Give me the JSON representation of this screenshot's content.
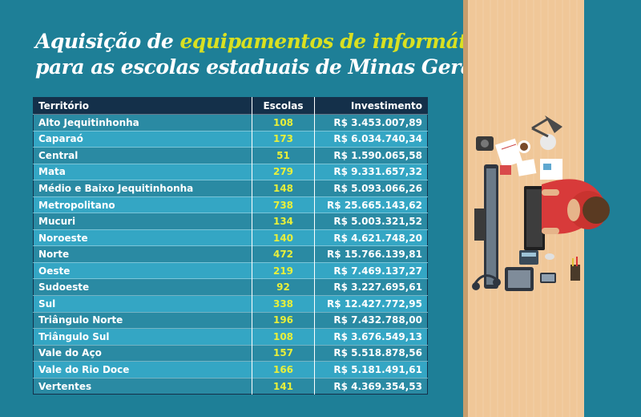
{
  "title": {
    "line1_part1": "Aquisição de ",
    "line1_highlight": "equipamentos de informática",
    "line2": "para as escolas estaduais de Minas Gerais"
  },
  "table": {
    "headers": [
      "Território",
      "Escolas",
      "Investimento"
    ],
    "rows": [
      [
        "Alto Jequitinhonha",
        "108",
        "R$ 3.453.007,89"
      ],
      [
        "Caparaó",
        "173",
        "R$ 6.034.740,34"
      ],
      [
        "Central",
        "51",
        "R$ 1.590.065,58"
      ],
      [
        "Mata",
        "279",
        "R$ 9.331.657,32"
      ],
      [
        "Médio e Baixo Jequitinhonha",
        "148",
        "R$ 5.093.066,26"
      ],
      [
        "Metropolitano",
        "738",
        "R$ 25.665.143,62"
      ],
      [
        "Mucuri",
        "134",
        "R$ 5.003.321,52"
      ],
      [
        "Noroeste",
        "140",
        "R$ 4.621.748,20"
      ],
      [
        "Norte",
        "472",
        "R$ 15.766.139,81"
      ],
      [
        "Oeste",
        "219",
        "R$ 7.469.137,27"
      ],
      [
        "Sudoeste",
        "92",
        "R$ 3.227.695,61"
      ],
      [
        "Sul",
        "338",
        "R$ 12.427.772,95"
      ],
      [
        "Triângulo Norte",
        "196",
        "R$ 7.432.788,00"
      ],
      [
        "Triângulo Sul",
        "108",
        "R$ 3.676.549,13"
      ],
      [
        "Vale do Aço",
        "157",
        "R$ 5.518.878,56"
      ],
      [
        "Vale do Rio Doce",
        "166",
        "R$ 5.181.491,61"
      ],
      [
        "Vertentes",
        "141",
        "R$ 4.369.354,53"
      ]
    ]
  },
  "colors": {
    "background": "#1e7f97",
    "header": "#14304a",
    "row_dark": "#2a8aa3",
    "row_light": "#34a6c4",
    "highlight": "#d9e021"
  },
  "illustration_icons": [
    "desk-lamp-icon",
    "camera-icon",
    "notepad-icon",
    "coffee-cup-icon",
    "monitor-icon",
    "keyboard-icon",
    "mouse-icon",
    "calculator-icon",
    "tablet-icon",
    "phone-icon",
    "headphones-icon",
    "person-icon"
  ]
}
